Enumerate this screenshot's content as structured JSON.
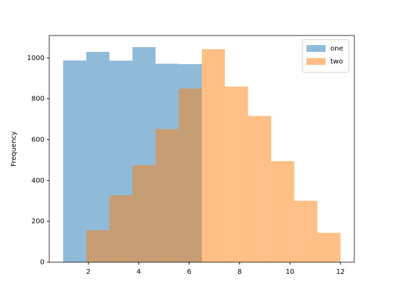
{
  "chart_data": {
    "type": "histogram",
    "y_label": "Frequency",
    "bins": [
      1,
      1.9166667,
      2.8333333,
      3.75,
      4.6666667,
      5.5833333,
      6.5,
      7.4166667,
      8.3333333,
      9.25,
      10.1666667,
      11.0833333,
      12
    ],
    "series": [
      {
        "name": "one",
        "color": "#1f77b4",
        "values": [
          988,
          1030,
          987,
          1053,
          972,
          970,
          0,
          0,
          0,
          0,
          0,
          0
        ]
      },
      {
        "name": "two",
        "color": "#ff7f0e",
        "values": [
          0,
          157,
          328,
          475,
          652,
          850,
          1043,
          860,
          716,
          495,
          301,
          144
        ]
      }
    ],
    "opacity": 0.5,
    "xlim": [
      0.45,
      12.55
    ],
    "ylim": [
      0,
      1110
    ],
    "xticks": [
      2,
      4,
      6,
      8,
      10,
      12
    ],
    "yticks": [
      0,
      200,
      400,
      600,
      800,
      1000
    ],
    "legend": "upper right"
  }
}
